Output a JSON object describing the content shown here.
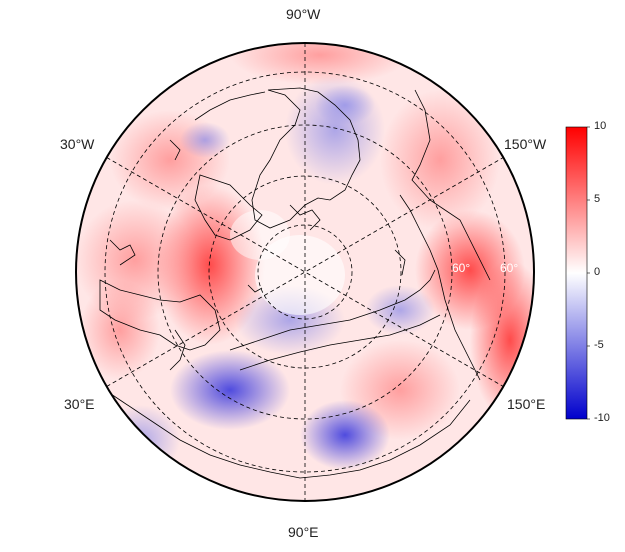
{
  "map": {
    "projection": "north-polar-stereographic",
    "longitude_labels": [
      "90°W",
      "30°W",
      "150°W",
      "30°E",
      "150°E",
      "90°E"
    ],
    "latitude_labels": [
      "60°",
      "60°"
    ],
    "field_description_colors": {
      "positive": "#ff0000",
      "neutral": "#ffffff",
      "negative": "#0000cc",
      "coast": "#000000"
    }
  },
  "colorbar": {
    "min": -10,
    "max": 10,
    "ticks": [
      "10",
      "5",
      "0",
      "-5",
      "-10"
    ],
    "colors": [
      "#ff0000",
      "#ffffff",
      "#0000cc"
    ]
  }
}
